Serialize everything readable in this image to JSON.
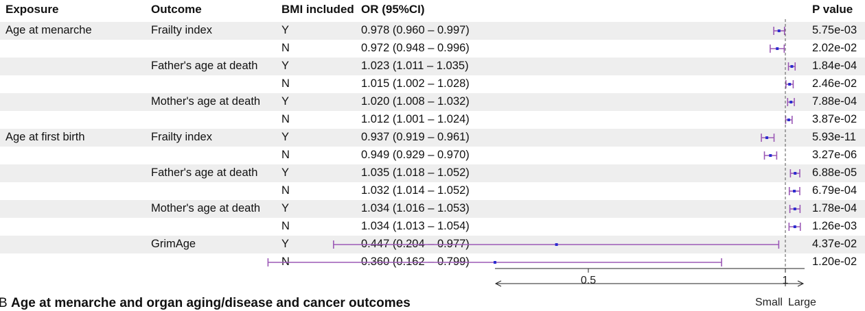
{
  "headers": {
    "exposure": "Exposure",
    "outcome": "Outcome",
    "bmi": "BMI included",
    "or": "OR (95%CI)",
    "p": "P value"
  },
  "chart_data": {
    "type": "forest",
    "x_scale": "log",
    "reference_line": 1,
    "xlim": [
      0.36,
      1.07
    ],
    "xticks": [
      0.5,
      1
    ],
    "xtick_labels": [
      "0.5",
      "1"
    ],
    "direction_labels": {
      "left": "Small",
      "right": "Large"
    },
    "colors": {
      "ci": "#9b59b6",
      "point": "#2c2ccf",
      "ref": "#555555",
      "band": "#eeeeee"
    },
    "rows": [
      {
        "exposure": "Age at menarche",
        "outcome": "Frailty index",
        "bmi": "Y",
        "or": 0.978,
        "lo": 0.96,
        "hi": 0.997,
        "or_text": "0.978 (0.960 – 0.997)",
        "p": "5.75e-03"
      },
      {
        "exposure": "",
        "outcome": "",
        "bmi": "N",
        "or": 0.972,
        "lo": 0.948,
        "hi": 0.996,
        "or_text": "0.972 (0.948 – 0.996)",
        "p": "2.02e-02"
      },
      {
        "exposure": "",
        "outcome": "Father's age at death",
        "bmi": "Y",
        "or": 1.023,
        "lo": 1.011,
        "hi": 1.035,
        "or_text": "1.023 (1.011 – 1.035)",
        "p": "1.84e-04"
      },
      {
        "exposure": "",
        "outcome": "",
        "bmi": "N",
        "or": 1.015,
        "lo": 1.002,
        "hi": 1.028,
        "or_text": "1.015 (1.002 – 1.028)",
        "p": "2.46e-02"
      },
      {
        "exposure": "",
        "outcome": "Mother's age at death",
        "bmi": "Y",
        "or": 1.02,
        "lo": 1.008,
        "hi": 1.032,
        "or_text": "1.020 (1.008 – 1.032)",
        "p": "7.88e-04"
      },
      {
        "exposure": "",
        "outcome": "",
        "bmi": "N",
        "or": 1.012,
        "lo": 1.001,
        "hi": 1.024,
        "or_text": "1.012 (1.001 – 1.024)",
        "p": "3.87e-02"
      },
      {
        "exposure": "Age at first birth",
        "outcome": "Frailty index",
        "bmi": "Y",
        "or": 0.937,
        "lo": 0.919,
        "hi": 0.961,
        "or_text": "0.937 (0.919 – 0.961)",
        "p": "5.93e-11"
      },
      {
        "exposure": "",
        "outcome": "",
        "bmi": "N",
        "or": 0.949,
        "lo": 0.929,
        "hi": 0.97,
        "or_text": "0.949 (0.929 – 0.970)",
        "p": "3.27e-06"
      },
      {
        "exposure": "",
        "outcome": "Father's age at death",
        "bmi": "Y",
        "or": 1.035,
        "lo": 1.018,
        "hi": 1.052,
        "or_text": "1.035 (1.018 – 1.052)",
        "p": "6.88e-05"
      },
      {
        "exposure": "",
        "outcome": "",
        "bmi": "N",
        "or": 1.032,
        "lo": 1.014,
        "hi": 1.052,
        "or_text": "1.032 (1.014 – 1.052)",
        "p": "6.79e-04"
      },
      {
        "exposure": "",
        "outcome": "Mother's age at death",
        "bmi": "Y",
        "or": 1.034,
        "lo": 1.016,
        "hi": 1.053,
        "or_text": "1.034 (1.016 – 1.053)",
        "p": "1.78e-04"
      },
      {
        "exposure": "",
        "outcome": "",
        "bmi": "N",
        "or": 1.034,
        "lo": 1.013,
        "hi": 1.054,
        "or_text": "1.034 (1.013 – 1.054)",
        "p": "1.26e-03"
      },
      {
        "exposure": "",
        "outcome": "GrimAge",
        "bmi": "Y",
        "or": 0.447,
        "lo": 0.204,
        "hi": 0.977,
        "or_text": "0.447 (0.204 – 0.977)",
        "p": "4.37e-02"
      },
      {
        "exposure": "",
        "outcome": "",
        "bmi": "N",
        "or": 0.36,
        "lo": 0.162,
        "hi": 0.799,
        "or_text": "0.360 (0.162 – 0.799)",
        "p": "1.20e-02"
      }
    ]
  },
  "caption": {
    "letter": "B",
    "text": "Age at menarche and organ aging/disease and cancer outcomes"
  }
}
